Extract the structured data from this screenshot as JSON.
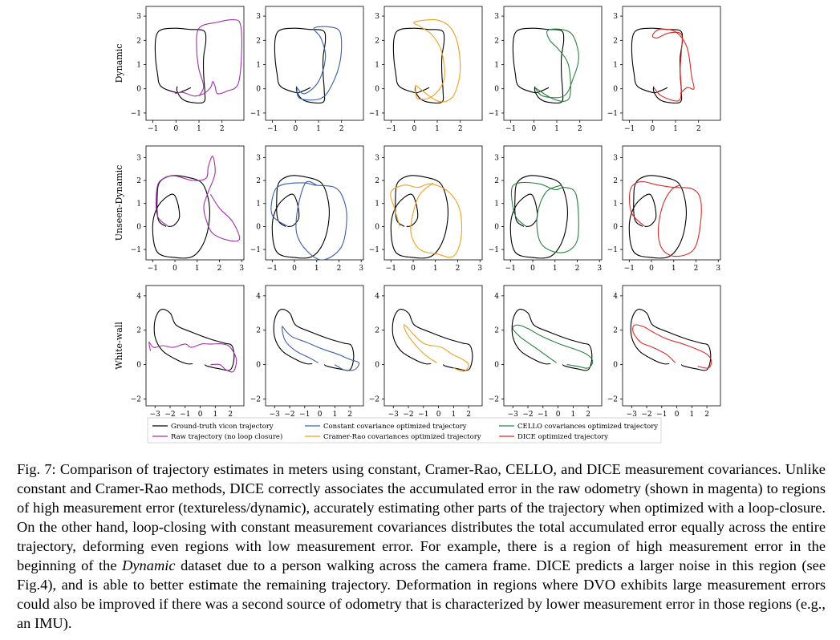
{
  "figure": {
    "rows": [
      {
        "label": "Dynamic",
        "yticks": [
          "3",
          "2",
          "1",
          "0",
          "−1"
        ],
        "xticks": [
          "−1",
          "0",
          "1",
          "2"
        ]
      },
      {
        "label": "Unseen-Dynamic",
        "yticks": [
          "3",
          "2",
          "1",
          "0",
          "−1"
        ],
        "xticks": [
          "−1",
          "0",
          "1",
          "2",
          "3"
        ]
      },
      {
        "label": "White-wall",
        "yticks": [
          "4",
          "2",
          "0",
          "−2"
        ],
        "xticks": [
          "−3",
          "−2",
          "−1",
          "0",
          "1",
          "2"
        ]
      }
    ],
    "methods": [
      {
        "name": "Raw trajectory (no loop closure)",
        "color": "#a030a8"
      },
      {
        "name": "Constant covariance optimized trajectory",
        "color": "#3a5fa8"
      },
      {
        "name": "Cramer-Rao covariances optimized trajectory",
        "color": "#f0a020"
      },
      {
        "name": "CELLO covariances optimized trajectory",
        "color": "#2a8040"
      },
      {
        "name": "DICE optimized trajectory",
        "color": "#e02828"
      }
    ],
    "ground_truth": {
      "name": "Ground-truth vicon trajectory",
      "color": "#000000"
    }
  },
  "caption": {
    "label": "Fig. 7:",
    "part1": "Comparison of trajectory estimates in meters using constant, Cramer-Rao, CELLO, and DICE measurement covariances. Unlike constant and Cramer-Rao methods, DICE correctly associates the accumulated error in the raw odometry (shown in magenta) to regions of high measurement error (textureless/dynamic), accurately estimating other parts of the trajectory when optimized with a loop-closure. On the other hand, loop-closing with constant measurement covariances distributes the total accumulated error equally across the entire trajectory, deforming even regions with low measurement error. For example, there is a region of high measurement error in the beginning of the",
    "emph": "Dynamic",
    "part2": "dataset due to a person walking across the camera frame. DICE predicts a larger noise in this region (see Fig.4), and is able to better estimate the remaining trajectory. Deformation in regions where DVO exhibits large measurement errors could also be improved if there was a second source of odometry that is characterized by lower measurement error in those regions (e.g., an IMU)."
  }
}
